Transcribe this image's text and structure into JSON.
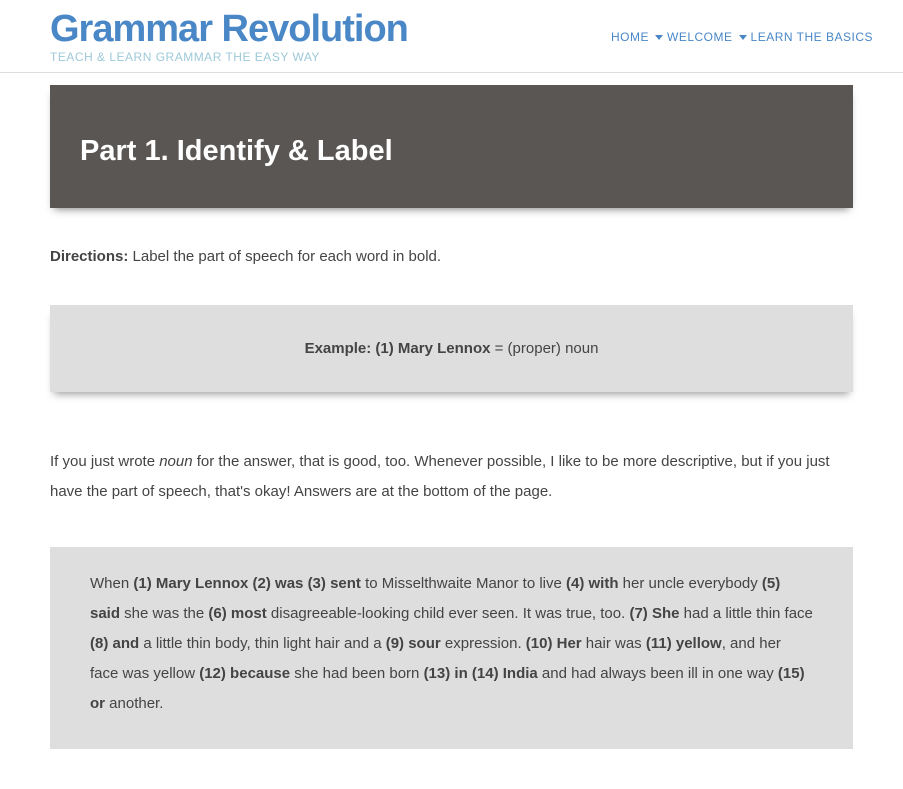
{
  "header": {
    "brand": "Grammar Revolution",
    "tagline": "TEACH & LEARN GRAMMAR THE EASY WAY",
    "nav": [
      {
        "label": "HOME",
        "has_dropdown": false
      },
      {
        "label": "WELCOME",
        "has_dropdown": true
      },
      {
        "label": "LEARN THE BASICS",
        "has_dropdown": true
      }
    ]
  },
  "hero": {
    "title": "Part 1. Identify & Label"
  },
  "directions": {
    "label": "Directions:",
    "text": " Label the part of speech for each word in bold."
  },
  "example": {
    "prefix": "Example: (1) Mary Lennox",
    "suffix": " = (proper) noun"
  },
  "note": {
    "t1": "If you just wrote ",
    "italic": "noun",
    "t2": " for the answer, that is good, too. Whenever possible, I like to be more descriptive, but if you just have the part of speech, that's okay! Answers are at the bottom of the page."
  },
  "passage": {
    "segments": [
      {
        "b": false,
        "t": "When "
      },
      {
        "b": true,
        "t": "(1) Mary Lennox (2) was (3) sent"
      },
      {
        "b": false,
        "t": " to Misselthwaite Manor to live "
      },
      {
        "b": true,
        "t": "(4) with"
      },
      {
        "b": false,
        "t": " her uncle everybody "
      },
      {
        "b": true,
        "t": "(5) said"
      },
      {
        "b": false,
        "t": " she was the "
      },
      {
        "b": true,
        "t": "(6) most"
      },
      {
        "b": false,
        "t": " disagreeable-looking child ever seen. It was true, too. "
      },
      {
        "b": true,
        "t": "(7) She"
      },
      {
        "b": false,
        "t": " had a little thin face "
      },
      {
        "b": true,
        "t": "(8) and"
      },
      {
        "b": false,
        "t": " a little thin body, thin light hair and a "
      },
      {
        "b": true,
        "t": "(9) sour"
      },
      {
        "b": false,
        "t": " expression. "
      },
      {
        "b": true,
        "t": "(10) Her"
      },
      {
        "b": false,
        "t": " hair was "
      },
      {
        "b": true,
        "t": "(11) yellow"
      },
      {
        "b": false,
        "t": ", and her face was yellow "
      },
      {
        "b": true,
        "t": "(12) because"
      },
      {
        "b": false,
        "t": " she had been born "
      },
      {
        "b": true,
        "t": "(13) in (14) India"
      },
      {
        "b": false,
        "t": " and had always been ill in one way "
      },
      {
        "b": true,
        "t": "(15) or"
      },
      {
        "b": false,
        "t": " another."
      }
    ]
  },
  "colors": {
    "brand": "#4A87C7",
    "tagline": "#9ec9d9",
    "hero_bg": "#5a5654",
    "box_bg": "#dedede",
    "text": "#444444"
  }
}
